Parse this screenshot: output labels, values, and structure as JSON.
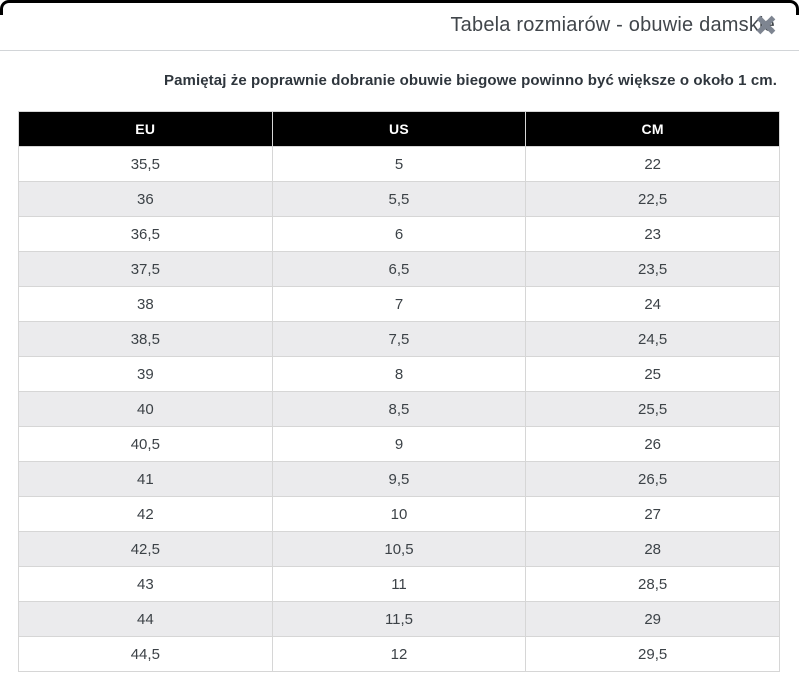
{
  "dialog": {
    "title": "Tabela rozmiarów - obuwie damskie",
    "notice": "Pamiętaj że poprawnie dobranie obuwie biegowe powinno być większe o około 1 cm.",
    "close_icon": "close-x-icon"
  },
  "table": {
    "columns": [
      "EU",
      "US",
      "CM"
    ],
    "rows": [
      [
        "35,5",
        "5",
        "22"
      ],
      [
        "36",
        "5,5",
        "22,5"
      ],
      [
        "36,5",
        "6",
        "23"
      ],
      [
        "37,5",
        "6,5",
        "23,5"
      ],
      [
        "38",
        "7",
        "24"
      ],
      [
        "38,5",
        "7,5",
        "24,5"
      ],
      [
        "39",
        "8",
        "25"
      ],
      [
        "40",
        "8,5",
        "25,5"
      ],
      [
        "40,5",
        "9",
        "26"
      ],
      [
        "41",
        "9,5",
        "26,5"
      ],
      [
        "42",
        "10",
        "27"
      ],
      [
        "42,5",
        "10,5",
        "28"
      ],
      [
        "43",
        "11",
        "28,5"
      ],
      [
        "44",
        "11,5",
        "29"
      ],
      [
        "44,5",
        "12",
        "29,5"
      ]
    ]
  },
  "colors": {
    "top_border": "#000000",
    "header_bg": "#000000",
    "header_text": "#ffffff",
    "row_alt_bg": "#ebebed",
    "cell_border": "#d6d6d6",
    "title_text": "#41464b",
    "notice_text": "#2f363d",
    "cell_text": "#3c4247",
    "close_icon": "#7e8591",
    "titlebar_divider": "#d2d5d8"
  }
}
